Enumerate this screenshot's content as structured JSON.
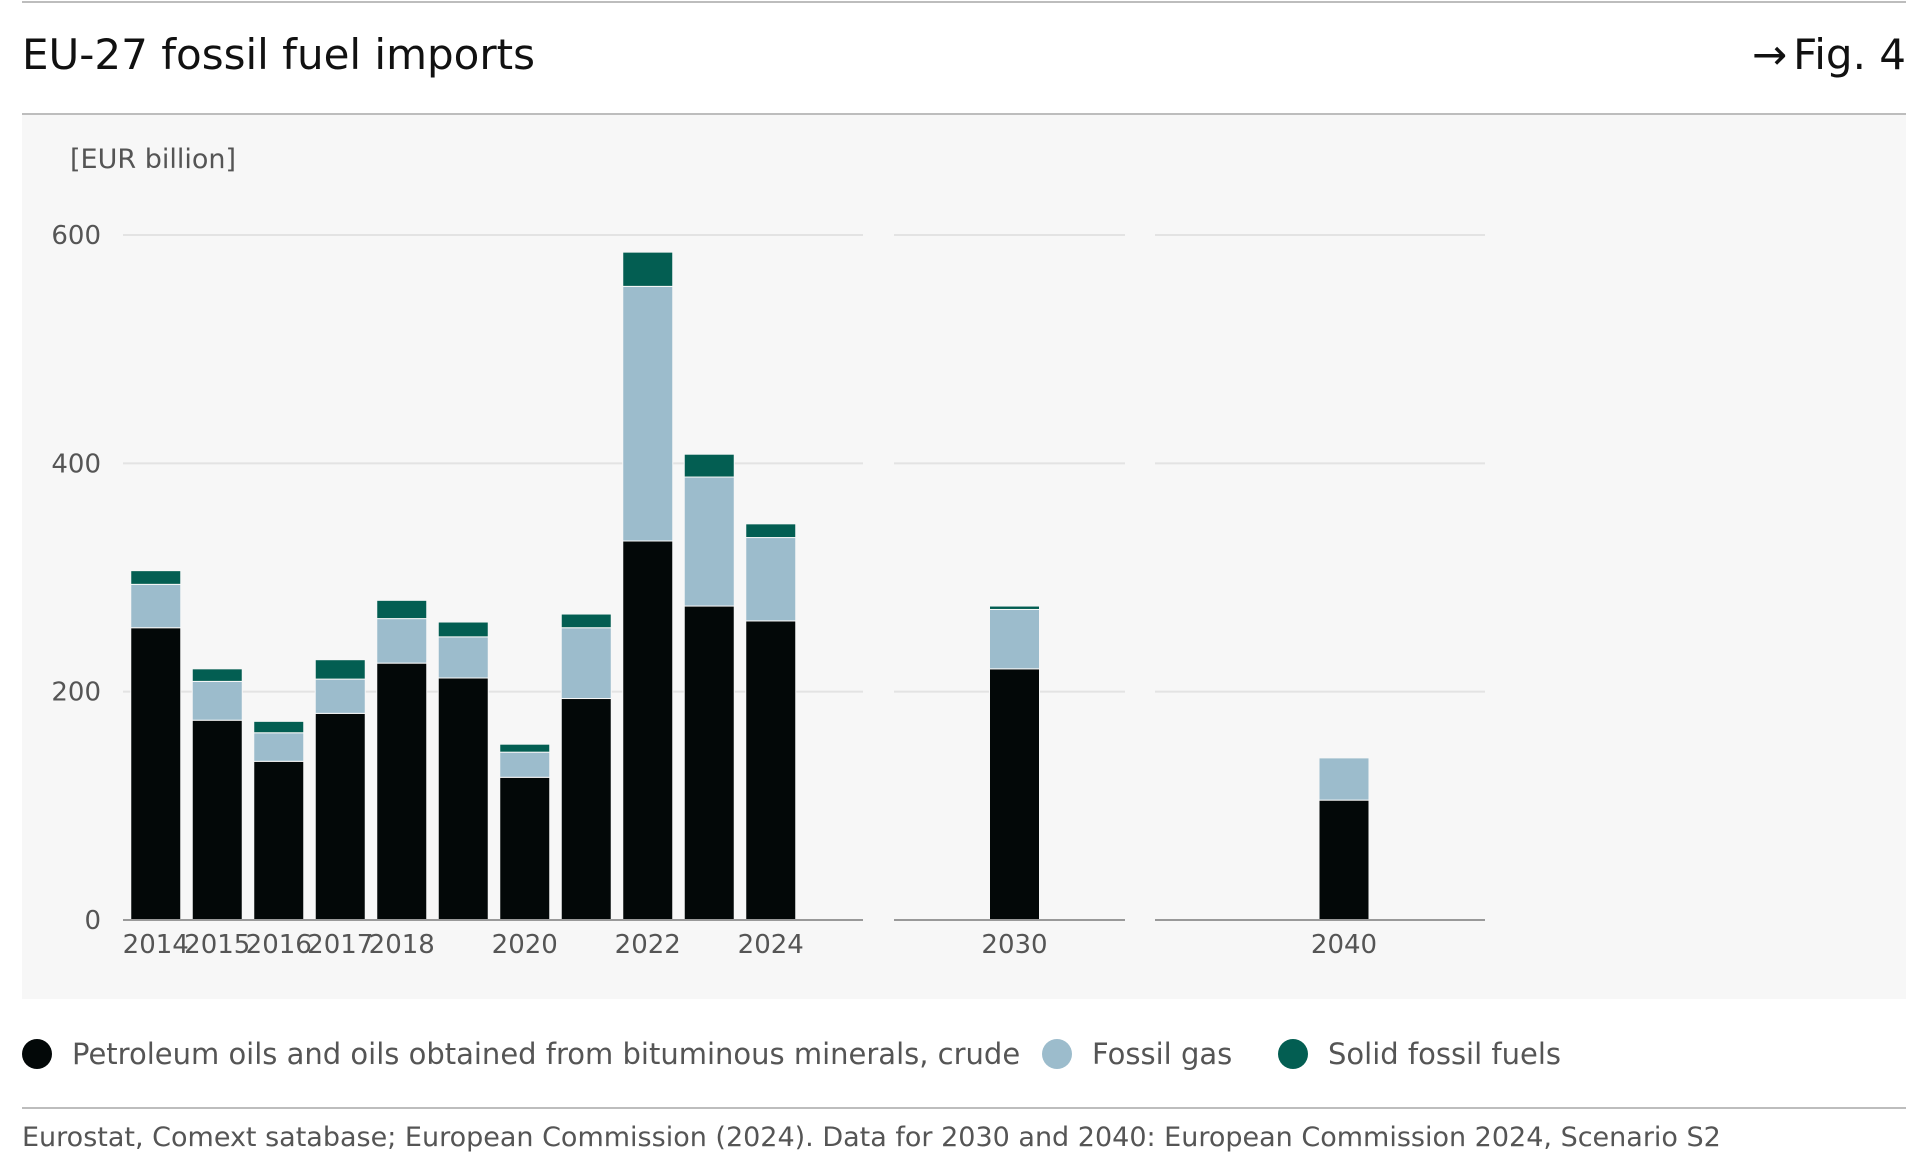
{
  "header": {
    "title": "EU-27 fossil fuel imports",
    "figure_ref_arrow": "→",
    "figure_ref": "Fig. 4"
  },
  "chart_data": {
    "type": "bar",
    "stacked": true,
    "unit_label": "[EUR billion]",
    "ylim": [
      0,
      600
    ],
    "yticks": [
      0,
      200,
      400,
      600
    ],
    "grid": true,
    "legend_position": "bottom",
    "panels": [
      {
        "categories": [
          "2014",
          "2015",
          "2016",
          "2017",
          "2018",
          "2019",
          "2020",
          "2021",
          "2022",
          "2023",
          "2024"
        ],
        "tick_labels": [
          "2014",
          "2015",
          "2016",
          "2017",
          "2018",
          "",
          "2020",
          "",
          "2022",
          "",
          "2024"
        ],
        "slots": 12
      },
      {
        "categories": [
          "2030"
        ],
        "tick_labels": [
          "2030"
        ],
        "slots": 1
      },
      {
        "categories": [
          "2040"
        ],
        "tick_labels": [
          "2040"
        ],
        "slots": 1
      }
    ],
    "series": [
      {
        "name": "Petroleum oils and oils obtained from bituminous minerals, crude",
        "color": "#030808",
        "values": [
          256,
          175,
          139,
          181,
          225,
          212,
          125,
          194,
          332,
          275,
          262,
          220,
          105
        ]
      },
      {
        "name": "Fossil gas",
        "color": "#9cbccc",
        "values": [
          38,
          34,
          25,
          30,
          39,
          36,
          22,
          62,
          223,
          113,
          73,
          52,
          37
        ]
      },
      {
        "name": "Solid fossil fuels",
        "color": "#035e52",
        "values": [
          12,
          11,
          10,
          17,
          16,
          13,
          7,
          12,
          30,
          20,
          12,
          3,
          0
        ]
      }
    ]
  },
  "source": "Eurostat, Comext satabase; European Commission (2024). Data for 2030 and 2040: European Commission 2024, Scenario S2"
}
